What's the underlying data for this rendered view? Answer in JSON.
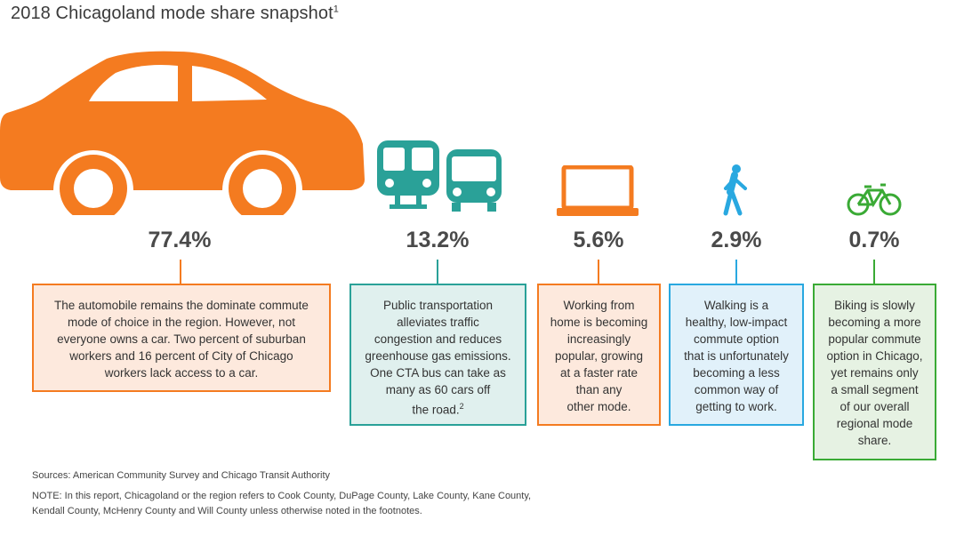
{
  "title": "2018 Chicagoland mode share snapshot",
  "title_note": "1",
  "colors": {
    "car": "#f47b20",
    "transit": "#2aa198",
    "laptop": "#f47b20",
    "walk": "#29a8e0",
    "bike": "#3aaa35"
  },
  "chart_data": {
    "type": "table",
    "title": "2018 Chicagoland mode share snapshot",
    "categories": [
      "Automobile",
      "Public transportation",
      "Work from home",
      "Walking",
      "Biking"
    ],
    "values": [
      77.4,
      13.2,
      5.6,
      2.9,
      0.7
    ],
    "unit": "%",
    "labels": [
      "77.4%",
      "13.2%",
      "5.6%",
      "2.9%",
      "0.7%"
    ]
  },
  "modes": [
    {
      "icon": "car-icon",
      "pct": "77.4%",
      "lines": [
        "The automobile remains the dominate commute",
        "mode of choice in the region. However, not",
        "everyone owns a car. Two percent of suburban",
        "workers and 16 percent of City of Chicago",
        "workers lack access to a car."
      ]
    },
    {
      "icon": "train-bus-icon",
      "pct": "13.2%",
      "lines": [
        "Public transportation",
        "alleviates traffic",
        "congestion and reduces",
        "greenhouse gas emissions.",
        "One CTA bus can take as",
        "many as 60 cars off",
        "the road."
      ],
      "note": "2"
    },
    {
      "icon": "laptop-icon",
      "pct": "5.6%",
      "lines": [
        "Working from",
        "home is becoming",
        "increasingly",
        "popular, growing",
        "at a faster rate",
        "than any",
        "other mode."
      ]
    },
    {
      "icon": "walking-person-icon",
      "pct": "2.9%",
      "lines": [
        "Walking is a",
        "healthy, low-impact",
        "commute option",
        "that is unfortunately",
        "becoming a less",
        "common way of",
        "getting to work."
      ]
    },
    {
      "icon": "bicycle-icon",
      "pct": "0.7%",
      "lines": [
        "Biking is slowly",
        "becoming a more",
        "popular commute",
        "option in Chicago,",
        "yet remains only",
        "a small segment",
        "of our overall",
        "regional mode",
        "share."
      ]
    }
  ],
  "footer": {
    "sources": "Sources: American Community Survey and Chicago Transit Authority",
    "note_line1": "NOTE: In this report, Chicagoland or the region refers to Cook County, DuPage County, Lake County, Kane County,",
    "note_line2": "Kendall County, McHenry County and Will County unless otherwise noted in the footnotes."
  }
}
